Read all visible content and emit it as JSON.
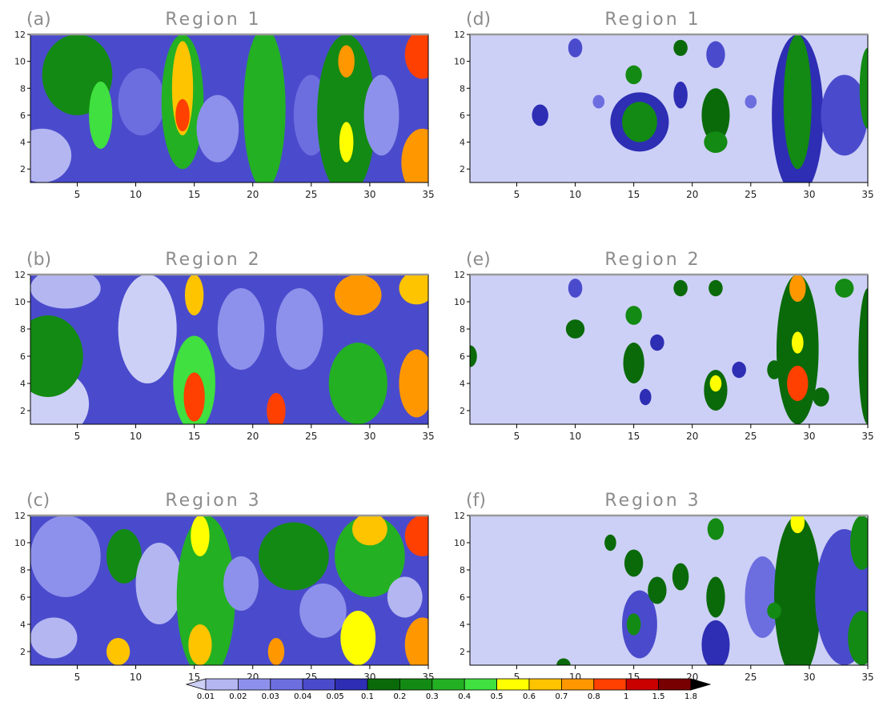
{
  "chart_data": {
    "type": "heatmap",
    "x_ticks": [
      5,
      10,
      15,
      20,
      25,
      30,
      35
    ],
    "y_ticks": [
      2,
      4,
      6,
      8,
      10,
      12
    ],
    "xlim": [
      1,
      35
    ],
    "ylim": [
      1,
      12
    ],
    "colorbar": {
      "labels": [
        "0.01",
        "0.02",
        "0.03",
        "0.04",
        "0.05",
        "0.1",
        "0.2",
        "0.3",
        "0.4",
        "0.5",
        "0.6",
        "0.7",
        "0.8",
        "1",
        "1.5",
        "1.8"
      ],
      "colors": [
        "#cdd0f6",
        "#b3b6f1",
        "#8e91eb",
        "#6c6ee0",
        "#4a4bcc",
        "#2d2eb4",
        "#0a6a0a",
        "#138a13",
        "#23b023",
        "#3fe03f",
        "#ffff00",
        "#ffc400",
        "#ff9800",
        "#ff4000",
        "#c80000",
        "#780000",
        "#000000"
      ],
      "extend": "both"
    },
    "panels": [
      {
        "label": "(a)",
        "title": "Region 1",
        "background_level": 4,
        "blobs": [
          {
            "x": 2,
            "y": 3,
            "rx": 2.5,
            "ry": 2,
            "level": 1
          },
          {
            "x": 5,
            "y": 9,
            "rx": 3,
            "ry": 3,
            "level": 7
          },
          {
            "x": 7,
            "y": 6,
            "rx": 1,
            "ry": 2.5,
            "level": 9
          },
          {
            "x": 10.5,
            "y": 7,
            "rx": 2,
            "ry": 2.5,
            "level": 3
          },
          {
            "x": 14,
            "y": 7,
            "rx": 1.8,
            "ry": 5,
            "level": 8
          },
          {
            "x": 14,
            "y": 8,
            "rx": 0.9,
            "ry": 3.5,
            "level": 11
          },
          {
            "x": 14,
            "y": 6,
            "rx": 0.6,
            "ry": 1.2,
            "level": 13
          },
          {
            "x": 17,
            "y": 5,
            "rx": 1.8,
            "ry": 2.5,
            "level": 2
          },
          {
            "x": 21,
            "y": 6.5,
            "rx": 1.8,
            "ry": 6,
            "level": 8
          },
          {
            "x": 25,
            "y": 6,
            "rx": 1.5,
            "ry": 3,
            "level": 3
          },
          {
            "x": 28,
            "y": 6,
            "rx": 2.5,
            "ry": 6,
            "level": 7
          },
          {
            "x": 28,
            "y": 10,
            "rx": 0.7,
            "ry": 1.2,
            "level": 12
          },
          {
            "x": 28,
            "y": 4,
            "rx": 0.6,
            "ry": 1.5,
            "level": 10
          },
          {
            "x": 31,
            "y": 6,
            "rx": 1.5,
            "ry": 3,
            "level": 2
          },
          {
            "x": 34.5,
            "y": 2.5,
            "rx": 1.8,
            "ry": 2.5,
            "level": 12
          },
          {
            "x": 34.5,
            "y": 10.5,
            "rx": 1.5,
            "ry": 1.8,
            "level": 13
          }
        ]
      },
      {
        "label": "(b)",
        "title": "Region 2",
        "background_level": 4,
        "blobs": [
          {
            "x": 3,
            "y": 2.5,
            "rx": 3,
            "ry": 2.5,
            "level": 0
          },
          {
            "x": 2.5,
            "y": 6,
            "rx": 3,
            "ry": 3,
            "level": 7
          },
          {
            "x": 4,
            "y": 11,
            "rx": 3,
            "ry": 1.5,
            "level": 1
          },
          {
            "x": 11,
            "y": 8,
            "rx": 2.5,
            "ry": 4,
            "level": 0
          },
          {
            "x": 15,
            "y": 4,
            "rx": 1.8,
            "ry": 3.5,
            "level": 9
          },
          {
            "x": 15,
            "y": 3,
            "rx": 0.9,
            "ry": 1.8,
            "level": 13
          },
          {
            "x": 15,
            "y": 10.5,
            "rx": 0.8,
            "ry": 1.5,
            "level": 11
          },
          {
            "x": 19,
            "y": 8,
            "rx": 2,
            "ry": 3,
            "level": 2
          },
          {
            "x": 22,
            "y": 2,
            "rx": 0.8,
            "ry": 1.3,
            "level": 13
          },
          {
            "x": 24,
            "y": 8,
            "rx": 2,
            "ry": 3,
            "level": 2
          },
          {
            "x": 29,
            "y": 4,
            "rx": 2.5,
            "ry": 3,
            "level": 8
          },
          {
            "x": 29,
            "y": 10.5,
            "rx": 2,
            "ry": 1.5,
            "level": 12
          },
          {
            "x": 34,
            "y": 4,
            "rx": 1.5,
            "ry": 2.5,
            "level": 12
          },
          {
            "x": 34,
            "y": 11,
            "rx": 1.5,
            "ry": 1.2,
            "level": 11
          }
        ]
      },
      {
        "label": "(c)",
        "title": "Region 3",
        "background_level": 4,
        "blobs": [
          {
            "x": 4,
            "y": 9,
            "rx": 3,
            "ry": 3,
            "level": 2
          },
          {
            "x": 3,
            "y": 3,
            "rx": 2,
            "ry": 1.5,
            "level": 1
          },
          {
            "x": 8.5,
            "y": 2,
            "rx": 1,
            "ry": 1,
            "level": 11
          },
          {
            "x": 9,
            "y": 9,
            "rx": 1.5,
            "ry": 2,
            "level": 7
          },
          {
            "x": 12,
            "y": 7,
            "rx": 2,
            "ry": 3,
            "level": 1
          },
          {
            "x": 16,
            "y": 6,
            "rx": 2.5,
            "ry": 6,
            "level": 8
          },
          {
            "x": 15.5,
            "y": 2.5,
            "rx": 1,
            "ry": 1.5,
            "level": 11
          },
          {
            "x": 15.5,
            "y": 10.5,
            "rx": 0.8,
            "ry": 1.5,
            "level": 10
          },
          {
            "x": 19,
            "y": 7,
            "rx": 1.5,
            "ry": 2,
            "level": 2
          },
          {
            "x": 22,
            "y": 2,
            "rx": 0.7,
            "ry": 1,
            "level": 12
          },
          {
            "x": 23.5,
            "y": 9,
            "rx": 3,
            "ry": 2.5,
            "level": 7
          },
          {
            "x": 26,
            "y": 5,
            "rx": 2,
            "ry": 2,
            "level": 2
          },
          {
            "x": 30,
            "y": 9,
            "rx": 3,
            "ry": 3,
            "level": 8
          },
          {
            "x": 30,
            "y": 11,
            "rx": 1.5,
            "ry": 1.2,
            "level": 11
          },
          {
            "x": 29,
            "y": 3,
            "rx": 1.5,
            "ry": 2,
            "level": 10
          },
          {
            "x": 34.5,
            "y": 2.5,
            "rx": 1.5,
            "ry": 2,
            "level": 12
          },
          {
            "x": 34.5,
            "y": 10.5,
            "rx": 1.5,
            "ry": 1.5,
            "level": 13
          },
          {
            "x": 33,
            "y": 6,
            "rx": 1.5,
            "ry": 1.5,
            "level": 1
          }
        ]
      },
      {
        "label": "(d)",
        "title": "Region 1",
        "background_level": 0,
        "blobs": [
          {
            "x": 15.5,
            "y": 5.5,
            "rx": 2.5,
            "ry": 2.2,
            "level": 5
          },
          {
            "x": 15.5,
            "y": 5.5,
            "rx": 1.5,
            "ry": 1.5,
            "level": 7
          },
          {
            "x": 15,
            "y": 9,
            "rx": 0.7,
            "ry": 0.7,
            "level": 7
          },
          {
            "x": 7,
            "y": 6,
            "rx": 0.7,
            "ry": 0.8,
            "level": 5
          },
          {
            "x": 10,
            "y": 11,
            "rx": 0.6,
            "ry": 0.7,
            "level": 4
          },
          {
            "x": 12,
            "y": 7,
            "rx": 0.5,
            "ry": 0.5,
            "level": 3
          },
          {
            "x": 19,
            "y": 11,
            "rx": 0.6,
            "ry": 0.6,
            "level": 6
          },
          {
            "x": 19,
            "y": 7.5,
            "rx": 0.6,
            "ry": 1,
            "level": 5
          },
          {
            "x": 22,
            "y": 6,
            "rx": 1.2,
            "ry": 2,
            "level": 6
          },
          {
            "x": 22,
            "y": 4,
            "rx": 1,
            "ry": 0.8,
            "level": 7
          },
          {
            "x": 22,
            "y": 10.5,
            "rx": 0.8,
            "ry": 1,
            "level": 4
          },
          {
            "x": 25,
            "y": 7,
            "rx": 0.5,
            "ry": 0.5,
            "level": 3
          },
          {
            "x": 29,
            "y": 6,
            "rx": 2.2,
            "ry": 6,
            "level": 5
          },
          {
            "x": 29,
            "y": 7,
            "rx": 1.2,
            "ry": 5,
            "level": 7
          },
          {
            "x": 33,
            "y": 6,
            "rx": 2,
            "ry": 3,
            "level": 4
          },
          {
            "x": 35,
            "y": 8,
            "rx": 0.7,
            "ry": 3,
            "level": 7
          }
        ]
      },
      {
        "label": "(e)",
        "title": "Region 2",
        "background_level": 0,
        "blobs": [
          {
            "x": 10,
            "y": 11,
            "rx": 0.6,
            "ry": 0.7,
            "level": 4
          },
          {
            "x": 10,
            "y": 8,
            "rx": 0.8,
            "ry": 0.7,
            "level": 6
          },
          {
            "x": 1,
            "y": 6,
            "rx": 0.6,
            "ry": 0.8,
            "level": 6
          },
          {
            "x": 15,
            "y": 9,
            "rx": 0.7,
            "ry": 0.7,
            "level": 7
          },
          {
            "x": 15,
            "y": 5.5,
            "rx": 0.9,
            "ry": 1.5,
            "level": 6
          },
          {
            "x": 16,
            "y": 3,
            "rx": 0.5,
            "ry": 0.6,
            "level": 5
          },
          {
            "x": 17,
            "y": 7,
            "rx": 0.6,
            "ry": 0.6,
            "level": 5
          },
          {
            "x": 19,
            "y": 11,
            "rx": 0.6,
            "ry": 0.6,
            "level": 6
          },
          {
            "x": 22,
            "y": 11,
            "rx": 0.6,
            "ry": 0.6,
            "level": 6
          },
          {
            "x": 22,
            "y": 3.5,
            "rx": 1,
            "ry": 1.5,
            "level": 6
          },
          {
            "x": 22,
            "y": 4,
            "rx": 0.5,
            "ry": 0.6,
            "level": 10
          },
          {
            "x": 24,
            "y": 5,
            "rx": 0.6,
            "ry": 0.6,
            "level": 5
          },
          {
            "x": 27,
            "y": 5,
            "rx": 0.6,
            "ry": 0.7,
            "level": 6
          },
          {
            "x": 29,
            "y": 6.5,
            "rx": 1.8,
            "ry": 5.5,
            "level": 6
          },
          {
            "x": 29,
            "y": 4,
            "rx": 0.9,
            "ry": 1.3,
            "level": 13
          },
          {
            "x": 29,
            "y": 7,
            "rx": 0.5,
            "ry": 0.8,
            "level": 10
          },
          {
            "x": 29,
            "y": 11,
            "rx": 0.7,
            "ry": 1,
            "level": 12
          },
          {
            "x": 31,
            "y": 3,
            "rx": 0.7,
            "ry": 0.7,
            "level": 6
          },
          {
            "x": 33,
            "y": 11,
            "rx": 0.8,
            "ry": 0.7,
            "level": 7
          },
          {
            "x": 35,
            "y": 6,
            "rx": 0.8,
            "ry": 5,
            "level": 6
          }
        ]
      },
      {
        "label": "(f)",
        "title": "Region 3",
        "background_level": 0,
        "blobs": [
          {
            "x": 9,
            "y": 1,
            "rx": 0.6,
            "ry": 0.5,
            "level": 6
          },
          {
            "x": 13,
            "y": 10,
            "rx": 0.5,
            "ry": 0.6,
            "level": 6
          },
          {
            "x": 15,
            "y": 8.5,
            "rx": 0.8,
            "ry": 1,
            "level": 6
          },
          {
            "x": 15.5,
            "y": 4,
            "rx": 1.5,
            "ry": 2.5,
            "level": 4
          },
          {
            "x": 15,
            "y": 4,
            "rx": 0.6,
            "ry": 0.8,
            "level": 7
          },
          {
            "x": 17,
            "y": 6.5,
            "rx": 0.8,
            "ry": 1,
            "level": 6
          },
          {
            "x": 19,
            "y": 7.5,
            "rx": 0.7,
            "ry": 1,
            "level": 6
          },
          {
            "x": 22,
            "y": 11,
            "rx": 0.7,
            "ry": 0.8,
            "level": 7
          },
          {
            "x": 22,
            "y": 6,
            "rx": 0.8,
            "ry": 1.5,
            "level": 6
          },
          {
            "x": 22,
            "y": 2.5,
            "rx": 1.2,
            "ry": 1.8,
            "level": 5
          },
          {
            "x": 26,
            "y": 6,
            "rx": 1.5,
            "ry": 3,
            "level": 3
          },
          {
            "x": 29,
            "y": 6,
            "rx": 2,
            "ry": 6,
            "level": 6
          },
          {
            "x": 29,
            "y": 11.5,
            "rx": 0.6,
            "ry": 0.8,
            "level": 10
          },
          {
            "x": 27,
            "y": 5,
            "rx": 0.6,
            "ry": 0.6,
            "level": 7
          },
          {
            "x": 33,
            "y": 6,
            "rx": 2.5,
            "ry": 5,
            "level": 4
          },
          {
            "x": 34.5,
            "y": 3,
            "rx": 1.2,
            "ry": 2,
            "level": 7
          },
          {
            "x": 34.5,
            "y": 10,
            "rx": 1,
            "ry": 2,
            "level": 7
          }
        ]
      }
    ]
  }
}
